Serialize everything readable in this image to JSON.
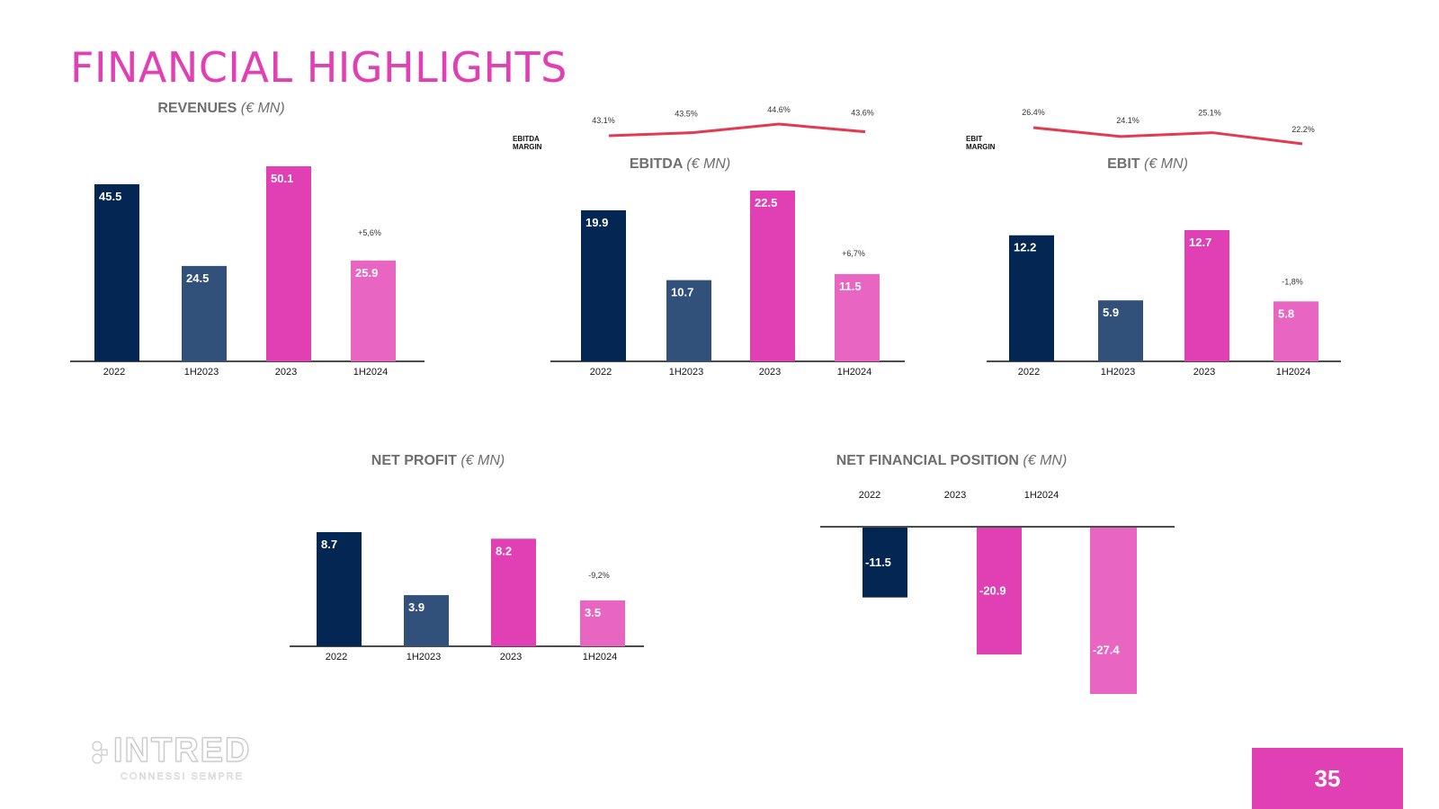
{
  "title": "FINANCIAL HIGHLIGHTS",
  "page_number": "35",
  "logo": {
    "name": "INTRED",
    "tagline": "CONNESSI SEMPRE"
  },
  "colors": {
    "title": "#e040b4",
    "bar_2022": "#042653",
    "bar_1h2023": "#31507a",
    "bar_2023": "#e040b4",
    "bar_1h2024": "#e865c2",
    "margin_line": "#e23a50",
    "axis": "#111111"
  },
  "charts": {
    "revenues": {
      "title": "REVENUES",
      "unit": "(€ MN)",
      "change": "+5,6%"
    },
    "ebitda": {
      "title": "EBITDA",
      "unit": "(€ MN)",
      "change": "+6,7%",
      "margin_label": [
        "EBITDA",
        "MARGIN"
      ]
    },
    "ebit": {
      "title": "EBIT",
      "unit": "(€ MN)",
      "change": "-1,8%",
      "margin_label": [
        "EBIT",
        "MARGIN"
      ]
    },
    "net_profit": {
      "title": "NET PROFIT",
      "unit": "(€ MN)",
      "change": "-9,2%"
    },
    "nfp": {
      "title": "NET FINANCIAL POSITION",
      "unit": "(€ MN)"
    }
  },
  "chart_data": [
    {
      "id": "revenues",
      "type": "bar",
      "title": "REVENUES (€ MN)",
      "categories": [
        "2022",
        "1H2023",
        "2023",
        "1H2024"
      ],
      "values": [
        45.5,
        24.5,
        50.1,
        25.9
      ],
      "labels": [
        "45.5",
        "24.5",
        "50.1",
        "25.9"
      ],
      "annotation": "+5,6%"
    },
    {
      "id": "ebitda",
      "type": "bar",
      "title": "EBITDA (€ MN)",
      "categories": [
        "2022",
        "1H2023",
        "2023",
        "1H2024"
      ],
      "values": [
        19.9,
        10.7,
        22.5,
        11.5
      ],
      "labels": [
        "19.9",
        "10.7",
        "22.5",
        "11.5"
      ],
      "annotation": "+6,7%",
      "margin_series": {
        "values": [
          43.1,
          43.5,
          44.6,
          43.6
        ],
        "labels": [
          "43.1%",
          "43.5%",
          "44.6%",
          "43.6%"
        ]
      }
    },
    {
      "id": "ebit",
      "type": "bar",
      "title": "EBIT (€ MN)",
      "categories": [
        "2022",
        "1H2023",
        "2023",
        "1H2024"
      ],
      "values": [
        12.2,
        5.9,
        12.7,
        5.8
      ],
      "labels": [
        "12.2",
        "5.9",
        "12.7",
        "5.8"
      ],
      "annotation": "-1,8%",
      "margin_series": {
        "values": [
          26.4,
          24.1,
          25.1,
          22.2
        ],
        "labels": [
          "26.4%",
          "24.1%",
          "25.1%",
          "22.2%"
        ]
      }
    },
    {
      "id": "net_profit",
      "type": "bar",
      "title": "NET PROFIT (€ MN)",
      "categories": [
        "2022",
        "1H2023",
        "2023",
        "1H2024"
      ],
      "values": [
        8.7,
        3.9,
        8.2,
        3.5
      ],
      "labels": [
        "8.7",
        "3.9",
        "8.2",
        "3.5"
      ],
      "annotation": "-9,2%"
    },
    {
      "id": "nfp",
      "type": "bar",
      "title": "NET FINANCIAL POSITION (€ MN)",
      "categories": [
        "2022",
        "2023",
        "1H2024"
      ],
      "values": [
        -11.5,
        -20.9,
        -27.4
      ],
      "labels": [
        "-11.5",
        "-20.9",
        "-27.4"
      ]
    }
  ]
}
